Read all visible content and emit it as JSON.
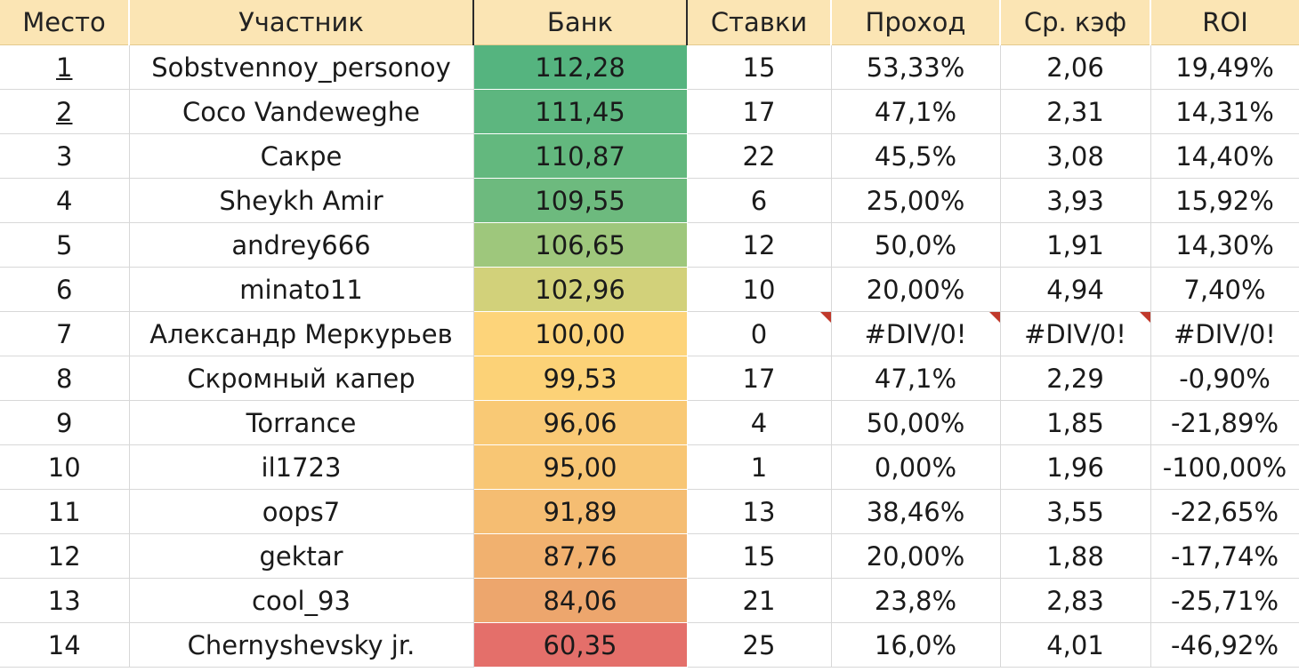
{
  "table": {
    "headers": [
      "Место",
      "Участник",
      "Банк",
      "Ставки",
      "Проход",
      "Ср. кэф",
      "ROI"
    ],
    "rows": [
      {
        "place": "1",
        "name": "Sobstvennoy_personoy",
        "bank": "112,28",
        "bets": "15",
        "pass": "53,33%",
        "odds": "2,06",
        "roi": "19,49%",
        "bank_color": "#55b47f"
      },
      {
        "place": "2",
        "name": "Coco Vandeweghe",
        "bank": "111,45",
        "bets": "17",
        "pass": "47,1%",
        "odds": "2,31",
        "roi": "14,31%",
        "bank_color": "#5db67f"
      },
      {
        "place": "3",
        "name": "Сакре",
        "bank": "110,87",
        "bets": "22",
        "pass": "45,5%",
        "odds": "3,08",
        "roi": "14,40%",
        "bank_color": "#63b87e"
      },
      {
        "place": "4",
        "name": "Sheykh Amir",
        "bank": "109,55",
        "bets": "6",
        "pass": "25,00%",
        "odds": "3,93",
        "roi": "15,92%",
        "bank_color": "#6dba7e"
      },
      {
        "place": "5",
        "name": "andrey666",
        "bank": "106,65",
        "bets": "12",
        "pass": "50,0%",
        "odds": "1,91",
        "roi": "14,30%",
        "bank_color": "#9ec77c"
      },
      {
        "place": "6",
        "name": "minato11",
        "bank": "102,96",
        "bets": "10",
        "pass": "20,00%",
        "odds": "4,94",
        "roi": "7,40%",
        "bank_color": "#d2d17a"
      },
      {
        "place": "7",
        "name": "Александр Меркурьев",
        "bank": "100,00",
        "bets": "0",
        "pass": "#DIV/0!",
        "odds": "#DIV/0!",
        "roi": "#DIV/0!",
        "bank_color": "#fdd47a"
      },
      {
        "place": "8",
        "name": "Скромный капер",
        "bank": "99,53",
        "bets": "17",
        "pass": "47,1%",
        "odds": "2,29",
        "roi": "-0,90%",
        "bank_color": "#fcd277"
      },
      {
        "place": "9",
        "name": "Torrance",
        "bank": "96,06",
        "bets": "4",
        "pass": "50,00%",
        "odds": "1,85",
        "roi": "-21,89%",
        "bank_color": "#f9c975"
      },
      {
        "place": "10",
        "name": "il1723",
        "bank": "95,00",
        "bets": "1",
        "pass": "0,00%",
        "odds": "1,96",
        "roi": "-100,00%",
        "bank_color": "#f8c674"
      },
      {
        "place": "11",
        "name": "oops7",
        "bank": "91,89",
        "bets": "13",
        "pass": "38,46%",
        "odds": "3,55",
        "roi": "-22,65%",
        "bank_color": "#f5bd72"
      },
      {
        "place": "12",
        "name": "gektar",
        "bank": "87,76",
        "bets": "15",
        "pass": "20,00%",
        "odds": "1,88",
        "roi": "-17,74%",
        "bank_color": "#f1b16f"
      },
      {
        "place": "13",
        "name": "cool_93",
        "bank": "84,06",
        "bets": "21",
        "pass": "23,8%",
        "odds": "2,83",
        "roi": "-25,71%",
        "bank_color": "#eda66d"
      },
      {
        "place": "14",
        "name": "Chernyshevsky jr.",
        "bank": "60,35",
        "bets": "25",
        "pass": "16,0%",
        "odds": "4,01",
        "roi": "-46,92%",
        "bank_color": "#e46f6a"
      }
    ]
  }
}
